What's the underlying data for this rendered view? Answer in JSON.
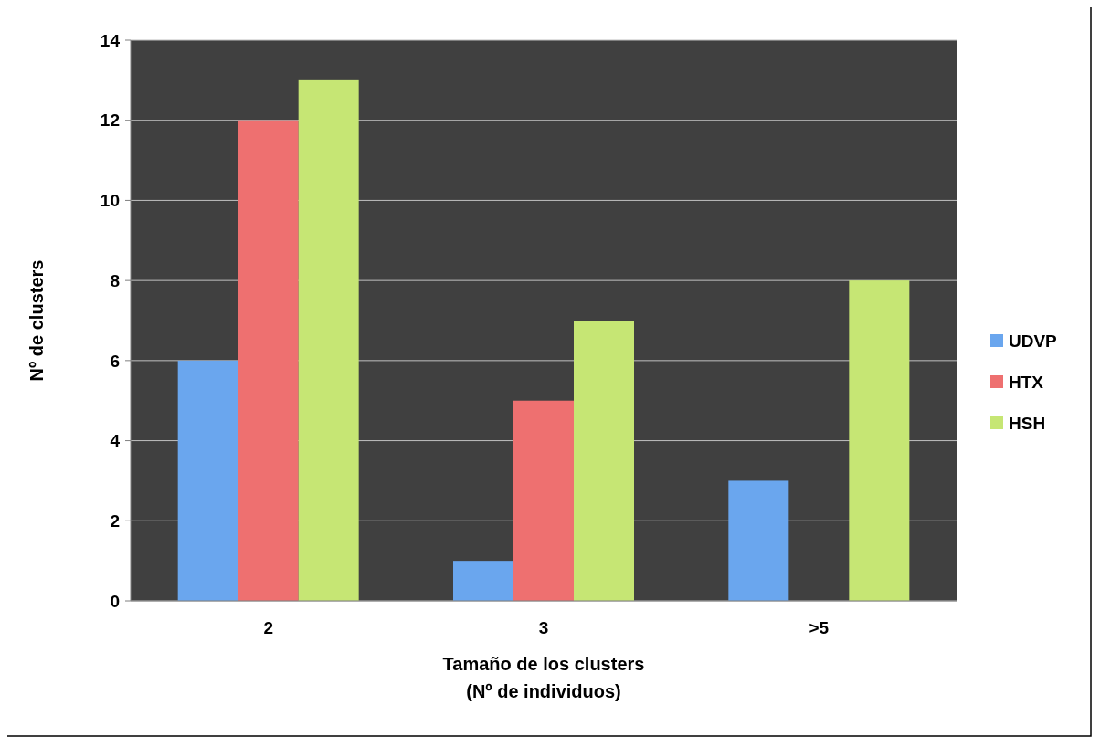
{
  "chart_data": {
    "type": "bar",
    "xlabel": "Tamaño de los clusters\n(Nº de individuos)",
    "ylabel": "Nº de clusters",
    "categories": [
      "2",
      "3",
      ">5"
    ],
    "series": [
      {
        "name": "UDVP",
        "color": "#6aa6ee",
        "values": [
          6,
          1,
          3
        ]
      },
      {
        "name": "HTX",
        "color": "#ee7070",
        "values": [
          12,
          5,
          0
        ]
      },
      {
        "name": "HSH",
        "color": "#c6e674",
        "values": [
          13,
          7,
          8
        ]
      }
    ],
    "ylim": [
      0,
      14
    ],
    "yticks": [
      0,
      2,
      4,
      6,
      8,
      10,
      12,
      14
    ],
    "grid": "y",
    "legend": "right"
  }
}
